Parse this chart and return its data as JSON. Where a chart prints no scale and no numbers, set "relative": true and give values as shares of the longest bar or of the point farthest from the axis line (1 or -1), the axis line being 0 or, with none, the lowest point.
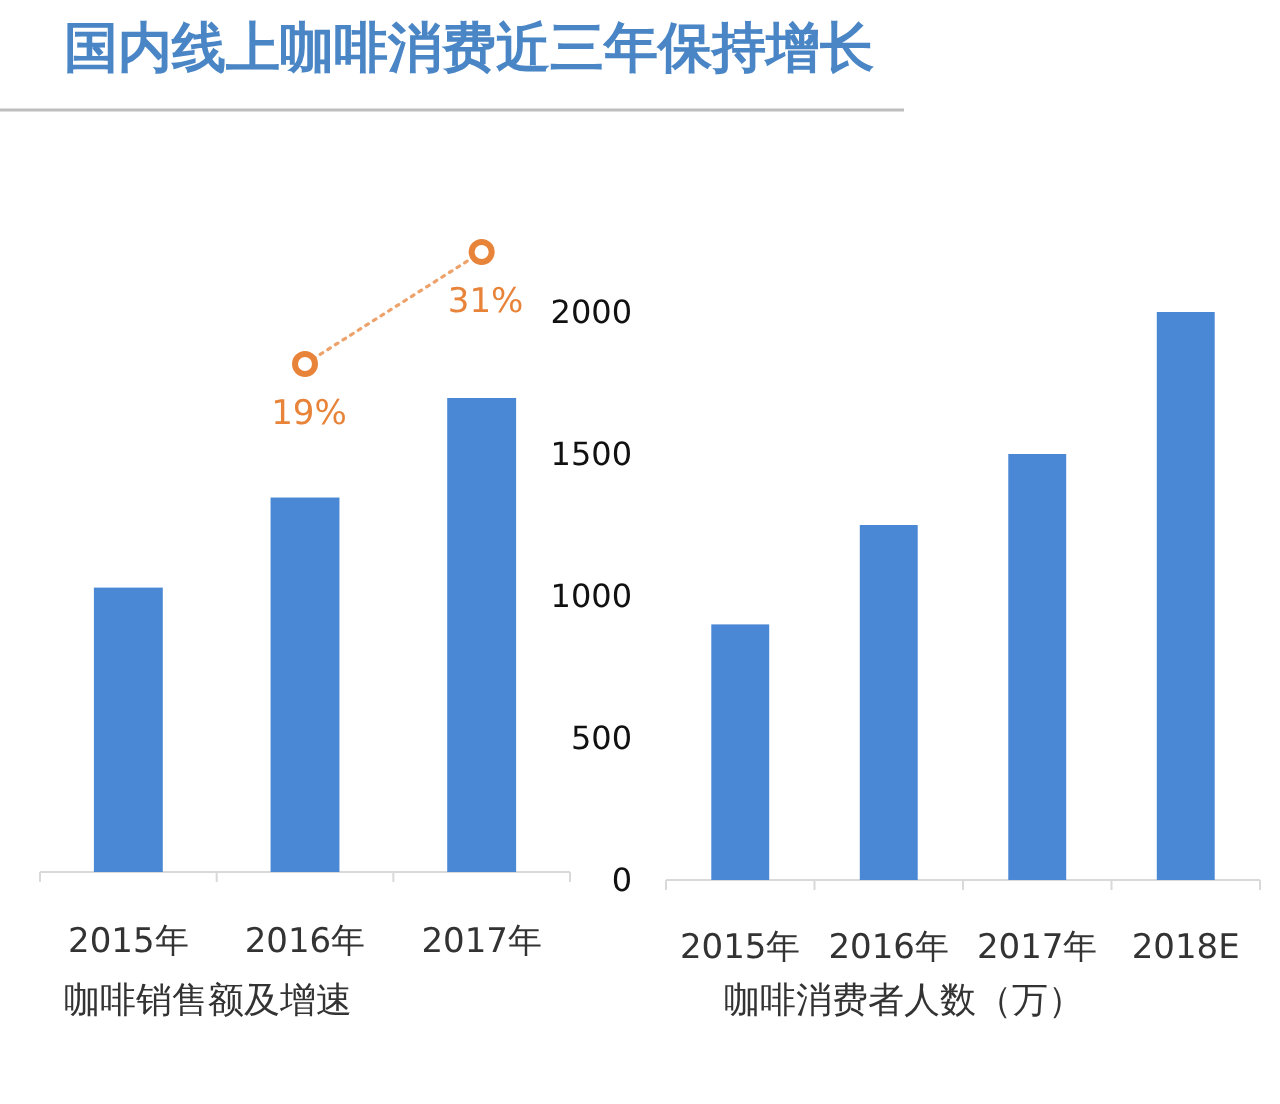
{
  "chart_data": [
    {
      "type": "line",
      "title": "国内线上咖啡消费近三年保持增长",
      "categories": [
        null,
        null,
        null
      ],
      "tick_labels": false,
      "marker": "circle",
      "line_style": "dotted",
      "color": "#e8833a",
      "values": [
        null,
        19,
        31
      ],
      "value_labels": [
        null,
        "19%",
        "31%"
      ]
    },
    {
      "type": "bar",
      "xlabel": "咖啡销售额及增速",
      "categories": [
        "2015年",
        "2016年",
        "2017年"
      ],
      "relative": true,
      "values": [
        0.6,
        0.79,
        1
      ],
      "color": "#4a87d4"
    },
    {
      "type": "bar",
      "xlabel": "咖啡消费者人数（万）",
      "categories": [
        "2015年",
        "2016年",
        "2017年",
        "2018E"
      ],
      "values": [
        900,
        1250,
        1500,
        2000
      ],
      "color": "#4a87d4",
      "ylim": [
        0,
        2000
      ],
      "yticks": [
        0,
        500,
        1000,
        1500,
        2000
      ]
    }
  ]
}
